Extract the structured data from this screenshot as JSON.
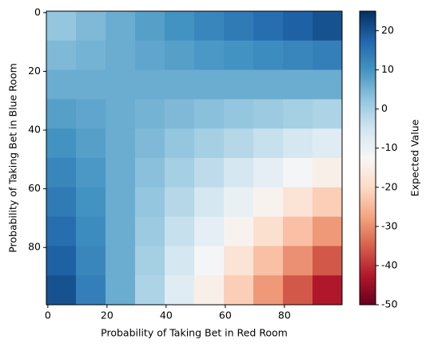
{
  "chart_data": {
    "type": "heatmap",
    "xlabel": "Probability of Taking Bet in Red Room",
    "ylabel": "Probability of Taking Bet in Blue Room",
    "colorbar_label": "Expected Value",
    "colormap": "RdBu",
    "x": [
      4.5,
      14.5,
      24.5,
      34.5,
      44.5,
      54.5,
      64.5,
      74.5,
      84.5,
      94.5
    ],
    "y": [
      4.5,
      14.5,
      24.5,
      34.5,
      44.5,
      54.5,
      64.5,
      74.5,
      84.5,
      94.5
    ],
    "z": [
      [
        2.25,
        4.25,
        6.25,
        8.25,
        10.25,
        12.25,
        14.25,
        16.25,
        18.25,
        20.25
      ],
      [
        4.25,
        5.25,
        6.25,
        7.25,
        8.25,
        9.25,
        10.25,
        11.25,
        12.25,
        13.25
      ],
      [
        6.25,
        6.25,
        6.25,
        6.25,
        6.25,
        6.25,
        6.25,
        6.25,
        6.25,
        6.25
      ],
      [
        8.25,
        7.25,
        6.25,
        5.25,
        4.25,
        3.25,
        2.25,
        1.25,
        0.25,
        -0.75
      ],
      [
        10.25,
        8.25,
        6.25,
        4.25,
        2.25,
        0.25,
        -1.75,
        -3.75,
        -5.75,
        -7.75
      ],
      [
        12.25,
        9.25,
        6.25,
        3.25,
        0.25,
        -2.75,
        -5.75,
        -8.75,
        -11.75,
        -14.75
      ],
      [
        14.25,
        10.25,
        6.25,
        2.25,
        -1.75,
        -5.75,
        -9.75,
        -13.75,
        -17.75,
        -21.75
      ],
      [
        16.25,
        11.25,
        6.25,
        1.25,
        -3.75,
        -8.75,
        -13.75,
        -18.75,
        -23.75,
        -28.75
      ],
      [
        18.25,
        12.25,
        6.25,
        0.25,
        -5.75,
        -11.75,
        -17.75,
        -23.75,
        -29.75,
        -35.75
      ],
      [
        20.25,
        13.25,
        6.25,
        -0.75,
        -7.75,
        -14.75,
        -21.75,
        -28.75,
        -35.75,
        -42.75
      ]
    ],
    "xlim": [
      -0.5,
      99.5
    ],
    "ylim": [
      99.5,
      -0.5
    ],
    "xticks": [
      0,
      20,
      40,
      60,
      80
    ],
    "yticks": [
      0,
      20,
      40,
      60,
      80
    ],
    "clim": [
      -50,
      25
    ],
    "cticks": [
      -50,
      -40,
      -30,
      -20,
      -10,
      0,
      10,
      20
    ]
  }
}
